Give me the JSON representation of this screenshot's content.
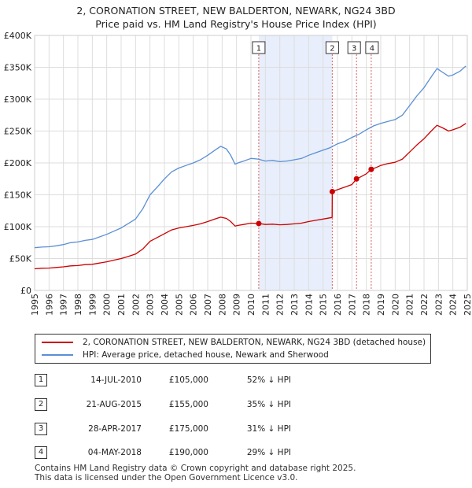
{
  "chart_data": {
    "type": "line",
    "title": "2, CORONATION STREET, NEW BALDERTON, NEWARK, NG24 3BD",
    "subtitle": "Price paid vs. HM Land Registry's House Price Index (HPI)",
    "xlim": [
      1995,
      2025
    ],
    "ylim": [
      0,
      400000
    ],
    "y_ticks": [
      {
        "value": 0,
        "label": "£0"
      },
      {
        "value": 50000,
        "label": "£50K"
      },
      {
        "value": 100000,
        "label": "£100K"
      },
      {
        "value": 150000,
        "label": "£150K"
      },
      {
        "value": 200000,
        "label": "£200K"
      },
      {
        "value": 250000,
        "label": "£250K"
      },
      {
        "value": 300000,
        "label": "£300K"
      },
      {
        "value": 350000,
        "label": "£350K"
      },
      {
        "value": 400000,
        "label": "£400K"
      }
    ],
    "x_ticks": [
      "1995",
      "1996",
      "1997",
      "1998",
      "1999",
      "2000",
      "2001",
      "2002",
      "2003",
      "2004",
      "2005",
      "2006",
      "2007",
      "2008",
      "2009",
      "2010",
      "2011",
      "2012",
      "2013",
      "2014",
      "2015",
      "2016",
      "2017",
      "2018",
      "2019",
      "2020",
      "2021",
      "2022",
      "2023",
      "2024",
      "2025"
    ],
    "shaded_region": [
      2010.54,
      2015.64
    ],
    "series": [
      {
        "name": "HPI: Average price, detached house, Newark and Sherwood",
        "color": "#5b8fd4",
        "points": [
          [
            1995.0,
            67000
          ],
          [
            1995.5,
            68000
          ],
          [
            1996.0,
            68500
          ],
          [
            1996.5,
            70000
          ],
          [
            1997.0,
            72000
          ],
          [
            1997.5,
            75000
          ],
          [
            1998.0,
            76000
          ],
          [
            1998.5,
            78500
          ],
          [
            1999.0,
            80000
          ],
          [
            1999.5,
            84000
          ],
          [
            2000.0,
            88000
          ],
          [
            2000.5,
            93000
          ],
          [
            2001.0,
            98000
          ],
          [
            2001.5,
            105000
          ],
          [
            2002.0,
            112000
          ],
          [
            2002.5,
            128000
          ],
          [
            2003.0,
            150000
          ],
          [
            2003.5,
            162000
          ],
          [
            2004.0,
            175000
          ],
          [
            2004.5,
            186000
          ],
          [
            2005.0,
            192000
          ],
          [
            2005.5,
            196000
          ],
          [
            2006.0,
            200000
          ],
          [
            2006.5,
            205000
          ],
          [
            2007.0,
            212000
          ],
          [
            2007.5,
            220000
          ],
          [
            2007.9,
            226000
          ],
          [
            2008.3,
            222000
          ],
          [
            2008.6,
            212000
          ],
          [
            2008.9,
            198000
          ],
          [
            2009.1,
            200000
          ],
          [
            2009.5,
            203000
          ],
          [
            2010.0,
            207000
          ],
          [
            2010.5,
            206000
          ],
          [
            2011.0,
            203000
          ],
          [
            2011.5,
            204000
          ],
          [
            2012.0,
            202000
          ],
          [
            2012.5,
            203000
          ],
          [
            2013.0,
            205000
          ],
          [
            2013.5,
            207000
          ],
          [
            2014.0,
            212000
          ],
          [
            2014.5,
            216000
          ],
          [
            2015.0,
            220000
          ],
          [
            2015.5,
            224000
          ],
          [
            2016.0,
            230000
          ],
          [
            2016.5,
            234000
          ],
          [
            2017.0,
            240000
          ],
          [
            2017.5,
            245000
          ],
          [
            2018.0,
            252000
          ],
          [
            2018.5,
            258000
          ],
          [
            2019.0,
            262000
          ],
          [
            2019.5,
            265000
          ],
          [
            2020.0,
            268000
          ],
          [
            2020.5,
            275000
          ],
          [
            2021.0,
            290000
          ],
          [
            2021.5,
            305000
          ],
          [
            2022.0,
            318000
          ],
          [
            2022.5,
            335000
          ],
          [
            2022.9,
            348000
          ],
          [
            2023.3,
            342000
          ],
          [
            2023.7,
            336000
          ],
          [
            2024.0,
            338000
          ],
          [
            2024.5,
            344000
          ],
          [
            2024.9,
            352000
          ]
        ]
      },
      {
        "name": "2, CORONATION STREET, NEW BALDERTON, NEWARK, NG24 3BD (detached house)",
        "color": "#cc0000",
        "points": [
          [
            1995.0,
            34000
          ],
          [
            1995.5,
            34800
          ],
          [
            1996.0,
            35000
          ],
          [
            1996.5,
            36000
          ],
          [
            1997.0,
            37000
          ],
          [
            1997.5,
            38500
          ],
          [
            1998.0,
            39000
          ],
          [
            1998.5,
            40500
          ],
          [
            1999.0,
            41000
          ],
          [
            1999.5,
            43000
          ],
          [
            2000.0,
            45000
          ],
          [
            2000.5,
            47500
          ],
          [
            2001.0,
            50000
          ],
          [
            2001.5,
            53500
          ],
          [
            2002.0,
            57000
          ],
          [
            2002.5,
            65000
          ],
          [
            2003.0,
            77000
          ],
          [
            2003.5,
            83000
          ],
          [
            2004.0,
            89000
          ],
          [
            2004.5,
            95000
          ],
          [
            2005.0,
            98000
          ],
          [
            2005.5,
            100000
          ],
          [
            2006.0,
            102000
          ],
          [
            2006.5,
            104500
          ],
          [
            2007.0,
            108000
          ],
          [
            2007.5,
            112000
          ],
          [
            2007.9,
            115000
          ],
          [
            2008.3,
            113000
          ],
          [
            2008.6,
            108000
          ],
          [
            2008.9,
            101000
          ],
          [
            2009.1,
            102000
          ],
          [
            2009.5,
            103500
          ],
          [
            2010.0,
            105500
          ],
          [
            2010.54,
            105000
          ],
          [
            2011.0,
            103500
          ],
          [
            2011.5,
            104000
          ],
          [
            2012.0,
            103000
          ],
          [
            2012.5,
            103500
          ],
          [
            2013.0,
            104500
          ],
          [
            2013.5,
            105500
          ],
          [
            2014.0,
            108000
          ],
          [
            2014.5,
            110000
          ],
          [
            2015.0,
            112000
          ],
          [
            2015.5,
            114000
          ],
          [
            2015.63,
            114500
          ],
          [
            2015.64,
            155000
          ],
          [
            2016.0,
            158000
          ],
          [
            2016.5,
            162000
          ],
          [
            2017.0,
            166000
          ],
          [
            2017.32,
            175000
          ],
          [
            2017.6,
            178000
          ],
          [
            2018.0,
            183000
          ],
          [
            2018.34,
            190000
          ],
          [
            2018.7,
            193000
          ],
          [
            2019.0,
            196000
          ],
          [
            2019.5,
            199000
          ],
          [
            2020.0,
            201000
          ],
          [
            2020.5,
            206000
          ],
          [
            2021.0,
            217000
          ],
          [
            2021.5,
            228000
          ],
          [
            2022.0,
            238000
          ],
          [
            2022.5,
            250000
          ],
          [
            2022.9,
            259000
          ],
          [
            2023.3,
            255000
          ],
          [
            2023.7,
            250000
          ],
          [
            2024.0,
            252000
          ],
          [
            2024.5,
            256000
          ],
          [
            2024.9,
            262000
          ]
        ]
      }
    ],
    "sales": [
      {
        "num": "1",
        "date": "14-JUL-2010",
        "year": 2010.54,
        "price": 105000,
        "price_label": "£105,000",
        "hpi": "52% ↓ HPI"
      },
      {
        "num": "2",
        "date": "21-AUG-2015",
        "year": 2015.64,
        "price": 155000,
        "price_label": "£155,000",
        "hpi": "35% ↓ HPI"
      },
      {
        "num": "3",
        "date": "28-APR-2017",
        "year": 2017.32,
        "price": 175000,
        "price_label": "£175,000",
        "hpi": "31% ↓ HPI"
      },
      {
        "num": "4",
        "date": "04-MAY-2018",
        "year": 2018.34,
        "price": 190000,
        "price_label": "£190,000",
        "hpi": "29% ↓ HPI"
      }
    ]
  },
  "legend": {
    "property_label": "2, CORONATION STREET, NEW BALDERTON, NEWARK, NG24 3BD (detached house)",
    "hpi_label": "HPI: Average price, detached house, Newark and Sherwood"
  },
  "footer": {
    "line1": "Contains HM Land Registry data © Crown copyright and database right 2025.",
    "line2": "This data is licensed under the Open Government Licence v3.0."
  },
  "colors": {
    "property": "#cc0000",
    "hpi": "#5b8fd4",
    "shade": "#e8eefb"
  }
}
